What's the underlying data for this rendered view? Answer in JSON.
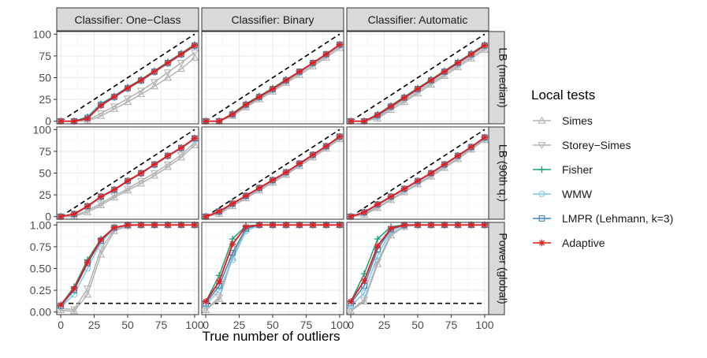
{
  "colors": {
    "simes": "#b3b3b3",
    "storey_simes": "#b3b3b3",
    "fisher": "#1b9e77",
    "wmw": "#7ec8ec",
    "lmpr": "#3a87b5",
    "adaptive": "#e41a1c",
    "reference": "#000000",
    "strip_bg": "#d9d9d9",
    "grid": "#ebebeb"
  },
  "chart_data": {
    "type": "line",
    "facet_cols": [
      "Classifier: One−Class",
      "Classifier: Binary",
      "Classifier: Automatic"
    ],
    "facet_rows": [
      "LB (median)",
      "LB (90th q.)",
      "Power (global)"
    ],
    "xlabel": "True number of outliers",
    "x": [
      0,
      10,
      20,
      30,
      40,
      50,
      60,
      70,
      80,
      90,
      100
    ],
    "x_ticks": [
      0,
      25,
      50,
      75,
      100
    ],
    "xlim": [
      -3,
      103
    ],
    "rows": [
      {
        "ylim": [
          -3,
          103
        ],
        "y_ticks": [
          0,
          25,
          50,
          75,
          100
        ],
        "y_tick_labels": [
          "0",
          "25",
          "50",
          "75",
          "100"
        ],
        "reference": "identity"
      },
      {
        "ylim": [
          -3,
          103
        ],
        "y_ticks": [
          0,
          25,
          50,
          75,
          100
        ],
        "y_tick_labels": [
          "0",
          "25",
          "50",
          "75",
          "100"
        ],
        "reference": "identity"
      },
      {
        "ylim": [
          -0.03,
          1.03
        ],
        "y_ticks": [
          0,
          0.25,
          0.5,
          0.75,
          1
        ],
        "y_tick_labels": [
          "0.00",
          "0.25",
          "0.50",
          "0.75",
          "1.00"
        ],
        "reference": 0.1
      }
    ],
    "legend": {
      "title": "Local tests",
      "position": "right",
      "entries": [
        {
          "key": "simes",
          "name": "Simes",
          "marker": "triangle-up"
        },
        {
          "key": "storey_simes",
          "name": "Storey−Simes",
          "marker": "triangle-down"
        },
        {
          "key": "fisher",
          "name": "Fisher",
          "marker": "plus"
        },
        {
          "key": "wmw",
          "name": "WMW",
          "marker": "circle"
        },
        {
          "key": "lmpr",
          "name": "LMPR (Lehmann, k=3)",
          "marker": "square"
        },
        {
          "key": "adaptive",
          "name": "Adaptive",
          "marker": "asterisk"
        }
      ]
    },
    "panels": [
      [
        {
          "simes": [
            0,
            0,
            0,
            6,
            14,
            22,
            31,
            40,
            50,
            60,
            73
          ],
          "storey_simes": [
            0,
            0,
            1,
            9,
            17,
            26,
            35,
            45,
            56,
            67,
            79
          ],
          "fisher": [
            0,
            0,
            5,
            20,
            29,
            39,
            48,
            58,
            68,
            78,
            88
          ],
          "wmw": [
            0,
            0,
            3,
            18,
            27,
            37,
            46,
            56,
            66,
            76,
            86
          ],
          "lmpr": [
            0,
            0,
            4,
            19,
            28,
            38,
            47,
            57,
            67,
            77,
            87
          ],
          "adaptive": [
            0,
            0,
            3,
            18,
            28,
            38,
            47,
            57,
            67,
            77,
            87
          ]
        },
        {
          "simes": [
            0,
            0,
            6,
            16,
            25,
            34,
            44,
            53,
            63,
            73,
            84
          ],
          "storey_simes": [
            0,
            0,
            7,
            17,
            26,
            35,
            45,
            55,
            65,
            75,
            86
          ],
          "fisher": [
            0,
            0,
            9,
            20,
            29,
            38,
            48,
            57,
            67,
            77,
            88
          ],
          "wmw": [
            0,
            0,
            7,
            18,
            27,
            36,
            46,
            56,
            66,
            76,
            87
          ],
          "lmpr": [
            0,
            0,
            8,
            19,
            28,
            37,
            47,
            57,
            67,
            77,
            88
          ],
          "adaptive": [
            0,
            0,
            8,
            19,
            28,
            37,
            47,
            57,
            67,
            77,
            88
          ]
        },
        {
          "simes": [
            0,
            0,
            3,
            13,
            22,
            32,
            42,
            52,
            62,
            72,
            82
          ],
          "storey_simes": [
            0,
            0,
            4,
            15,
            24,
            34,
            44,
            54,
            64,
            74,
            84
          ],
          "fisher": [
            0,
            0,
            8,
            18,
            28,
            38,
            48,
            58,
            68,
            78,
            88
          ],
          "wmw": [
            0,
            0,
            5,
            16,
            26,
            36,
            46,
            56,
            66,
            76,
            86
          ],
          "lmpr": [
            0,
            0,
            7,
            17,
            27,
            37,
            47,
            57,
            67,
            77,
            87
          ],
          "adaptive": [
            0,
            0,
            7,
            17,
            27,
            37,
            47,
            57,
            67,
            77,
            87
          ]
        }
      ],
      [
        {
          "simes": [
            0,
            0,
            5,
            13,
            22,
            30,
            38,
            47,
            57,
            68,
            82
          ],
          "storey_simes": [
            0,
            1,
            7,
            15,
            24,
            32,
            41,
            50,
            60,
            71,
            85
          ],
          "fisher": [
            0,
            3,
            12,
            23,
            31,
            41,
            50,
            60,
            70,
            79,
            90
          ],
          "wmw": [
            0,
            2,
            11,
            22,
            30,
            40,
            49,
            59,
            69,
            78,
            89
          ],
          "lmpr": [
            0,
            3,
            12,
            23,
            31,
            41,
            50,
            60,
            70,
            79,
            90
          ],
          "adaptive": [
            0,
            3,
            12,
            23,
            31,
            41,
            50,
            60,
            70,
            79,
            90
          ]
        },
        {
          "simes": [
            0,
            3,
            12,
            21,
            30,
            39,
            48,
            58,
            68,
            78,
            89
          ],
          "storey_simes": [
            0,
            4,
            13,
            22,
            31,
            40,
            49,
            59,
            69,
            79,
            90
          ],
          "fisher": [
            0,
            6,
            15,
            24,
            33,
            42,
            51,
            61,
            71,
            81,
            92
          ],
          "wmw": [
            0,
            5,
            14,
            23,
            32,
            41,
            50,
            60,
            70,
            80,
            91
          ],
          "lmpr": [
            0,
            6,
            15,
            24,
            33,
            42,
            51,
            61,
            71,
            81,
            92
          ],
          "adaptive": [
            0,
            6,
            15,
            24,
            33,
            42,
            51,
            61,
            71,
            81,
            92
          ]
        },
        {
          "simes": [
            0,
            2,
            10,
            19,
            28,
            37,
            46,
            56,
            66,
            77,
            88
          ],
          "storey_simes": [
            0,
            3,
            11,
            20,
            29,
            38,
            47,
            57,
            67,
            78,
            89
          ],
          "fisher": [
            0,
            5,
            14,
            23,
            32,
            41,
            50,
            60,
            70,
            80,
            91
          ],
          "wmw": [
            0,
            4,
            13,
            22,
            31,
            40,
            49,
            59,
            69,
            79,
            90
          ],
          "lmpr": [
            0,
            5,
            14,
            23,
            32,
            41,
            50,
            60,
            70,
            80,
            91
          ],
          "adaptive": [
            0,
            5,
            14,
            23,
            32,
            41,
            50,
            60,
            70,
            80,
            91
          ]
        }
      ],
      [
        {
          "simes": [
            0.02,
            0.01,
            0.2,
            0.66,
            0.93,
            0.99,
            1,
            1,
            1,
            1,
            1
          ],
          "storey_simes": [
            0.04,
            0.03,
            0.27,
            0.72,
            0.95,
            0.99,
            1,
            1,
            1,
            1,
            1
          ],
          "fisher": [
            0.08,
            0.29,
            0.6,
            0.84,
            0.97,
            1,
            1,
            1,
            1,
            1,
            1
          ],
          "wmw": [
            0.06,
            0.2,
            0.5,
            0.8,
            0.96,
            1,
            1,
            1,
            1,
            1,
            1
          ],
          "lmpr": [
            0.07,
            0.25,
            0.56,
            0.82,
            0.97,
            1,
            1,
            1,
            1,
            1,
            1
          ],
          "adaptive": [
            0.08,
            0.27,
            0.57,
            0.83,
            0.97,
            1,
            1,
            1,
            1,
            1,
            1
          ]
        },
        {
          "simes": [
            0.02,
            0.15,
            0.63,
            0.95,
            1,
            1,
            1,
            1,
            1,
            1,
            1
          ],
          "storey_simes": [
            0.03,
            0.17,
            0.66,
            0.96,
            1,
            1,
            1,
            1,
            1,
            1,
            1
          ],
          "fisher": [
            0.12,
            0.42,
            0.84,
            0.99,
            1,
            1,
            1,
            1,
            1,
            1,
            1
          ],
          "wmw": [
            0.08,
            0.25,
            0.6,
            0.93,
            1,
            1,
            1,
            1,
            1,
            1,
            1
          ],
          "lmpr": [
            0.1,
            0.3,
            0.68,
            0.96,
            1,
            1,
            1,
            1,
            1,
            1,
            1
          ],
          "adaptive": [
            0.12,
            0.35,
            0.78,
            0.98,
            1,
            1,
            1,
            1,
            1,
            1,
            1
          ]
        },
        {
          "simes": [
            0.01,
            0.12,
            0.55,
            0.88,
            0.98,
            1,
            1,
            1,
            1,
            1,
            1
          ],
          "storey_simes": [
            0.02,
            0.14,
            0.58,
            0.9,
            0.98,
            1,
            1,
            1,
            1,
            1,
            1
          ],
          "fisher": [
            0.12,
            0.44,
            0.84,
            0.98,
            1,
            1,
            1,
            1,
            1,
            1,
            1
          ],
          "wmw": [
            0.07,
            0.22,
            0.65,
            0.93,
            0.99,
            1,
            1,
            1,
            1,
            1,
            1
          ],
          "lmpr": [
            0.1,
            0.3,
            0.72,
            0.95,
            1,
            1,
            1,
            1,
            1,
            1,
            1
          ],
          "adaptive": [
            0.12,
            0.36,
            0.76,
            0.96,
            1,
            1,
            1,
            1,
            1,
            1,
            1
          ]
        }
      ]
    ]
  }
}
